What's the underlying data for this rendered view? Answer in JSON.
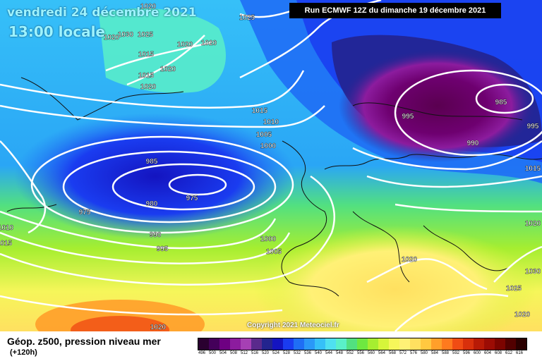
{
  "title": {
    "date": "vendredi 24 décembre 2021",
    "time": "13:00 locale"
  },
  "run_banner": "Run ECMWF 12Z du dimanche 19 décembre 2021",
  "copyright": "Copyright 2021 Meteociel.fr",
  "legend": {
    "title": "Géop. z500, pression niveau mer",
    "subtitle": "(+120h)",
    "levels": [
      "496",
      "500",
      "504",
      "508",
      "512",
      "516",
      "520",
      "524",
      "528",
      "532",
      "536",
      "540",
      "544",
      "548",
      "552",
      "556",
      "560",
      "564",
      "568",
      "572",
      "576",
      "580",
      "584",
      "588",
      "592",
      "596",
      "600",
      "604",
      "608",
      "612",
      "616"
    ],
    "colors": [
      "#2a0030",
      "#44005a",
      "#6e0082",
      "#8c1c9e",
      "#a640b4",
      "#5a2a8c",
      "#23248e",
      "#1414c0",
      "#1a3cf0",
      "#1f6ef5",
      "#2a98f8",
      "#36c0f8",
      "#4fe0f0",
      "#5af0c8",
      "#52e080",
      "#6ee840",
      "#a6ee30",
      "#d6f53a",
      "#f6f65a",
      "#fff176",
      "#ffe060",
      "#ffc840",
      "#ff9f2a",
      "#ff7a1e",
      "#f04c14",
      "#d8300c",
      "#b81a06",
      "#9c0c04",
      "#7c0400",
      "#520000",
      "#2a0000"
    ]
  },
  "isobars": [
    "1020",
    "1025",
    "1030",
    "1025",
    "1020",
    "1020",
    "1015",
    "1015",
    "1020",
    "1020",
    "1015",
    "1010",
    "1005",
    "1000",
    "985",
    "975",
    "975",
    "980",
    "990",
    "995",
    "1000",
    "1005",
    "1020",
    "1020",
    "995",
    "985",
    "990",
    "995",
    "1015",
    "1020",
    "1030",
    "1025",
    "1020",
    "1010",
    "1015",
    "1020"
  ]
}
